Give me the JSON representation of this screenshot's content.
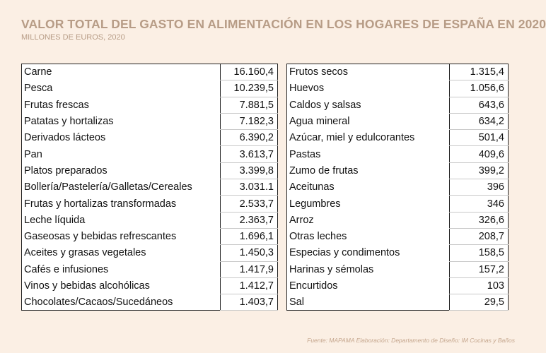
{
  "header": {
    "title": "VALOR TOTAL DEL GASTO EN ALIMENTACIÓN EN LOS HOGARES DE ESPAÑA EN 2020",
    "subtitle": "MILLONES DE EUROS, 2020"
  },
  "footer": {
    "source": "Fuente: MAPAMA Elaboración: Departamento de Diseño: IM Cocinas y Baños"
  },
  "chart_data": {
    "type": "table",
    "title": "VALOR TOTAL DEL GASTO EN ALIMENTACIÓN EN LOS HOGARES DE ESPAÑA EN 2020",
    "unit": "MILLONES DE EUROS, 2020",
    "left": [
      {
        "label": "Carne",
        "value": "16.160,4"
      },
      {
        "label": "Pesca",
        "value": "10.239,5"
      },
      {
        "label": "Frutas frescas",
        "value": "7.881,5"
      },
      {
        "label": "Patatas y hortalizas",
        "value": "7.182,3"
      },
      {
        "label": "Derivados lácteos",
        "value": "6.390,2"
      },
      {
        "label": "Pan",
        "value": "3.613,7"
      },
      {
        "label": "Platos preparados",
        "value": "3.399,8"
      },
      {
        "label": "Bollería/Pastelería/Galletas/Cereales",
        "value": "3.031.1"
      },
      {
        "label": "Frutas y hortalizas transformadas",
        "value": "2.533,7"
      },
      {
        "label": "Leche líquida",
        "value": "2.363,7"
      },
      {
        "label": "Gaseosas y bebidas refrescantes",
        "value": "1.696,1"
      },
      {
        "label": "Aceites y grasas vegetales",
        "value": "1.450,3"
      },
      {
        "label": "Cafés e infusiones",
        "value": "1.417,9"
      },
      {
        "label": "Vinos y bebidas alcohólicas",
        "value": "1.412,7"
      },
      {
        "label": "Chocolates/Cacaos/Sucedáneos",
        "value": "1.403,7"
      }
    ],
    "right": [
      {
        "label": "Frutos secos",
        "value": "1.315,4"
      },
      {
        "label": "Huevos",
        "value": "1.056,6"
      },
      {
        "label": "Caldos y salsas",
        "value": "643,6"
      },
      {
        "label": "Agua mineral",
        "value": "634,2"
      },
      {
        "label": "Azúcar, miel y edulcorantes",
        "value": "501,4"
      },
      {
        "label": "Pastas",
        "value": "409,6"
      },
      {
        "label": "Zumo de frutas",
        "value": "399,2"
      },
      {
        "label": "Aceitunas",
        "value": "396"
      },
      {
        "label": "Legumbres",
        "value": "346"
      },
      {
        "label": "Arroz",
        "value": "326,6"
      },
      {
        "label": "Otras leches",
        "value": "208,7"
      },
      {
        "label": "Especias y condimentos",
        "value": "158,5"
      },
      {
        "label": "Harinas y sémolas",
        "value": "157,2"
      },
      {
        "label": "Encurtidos",
        "value": "103"
      },
      {
        "label": "Sal",
        "value": "29,5"
      }
    ]
  }
}
